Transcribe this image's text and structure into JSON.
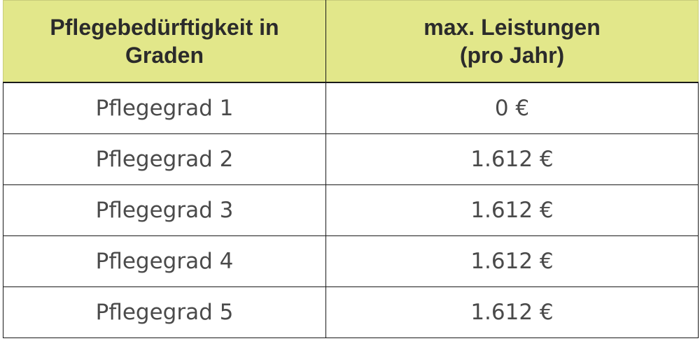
{
  "header": {
    "col1_line1": "Pflegebedürftigkeit in",
    "col1_line2": "Graden",
    "col2_line1": "max. Leistungen",
    "col2_line2": "(pro Jahr)"
  },
  "rows": [
    {
      "grade": "Pflegegrad 1",
      "amount": "0 €"
    },
    {
      "grade": "Pflegegrad 2",
      "amount": "1.612 €"
    },
    {
      "grade": "Pflegegrad 3",
      "amount": "1.612 €"
    },
    {
      "grade": "Pflegegrad 4",
      "amount": "1.612 €"
    },
    {
      "grade": "Pflegegrad 5",
      "amount": "1.612 €"
    }
  ],
  "colors": {
    "header_bg": "#e2e78a",
    "border": "#1a1a1a",
    "body_text": "#4a4a4a"
  }
}
